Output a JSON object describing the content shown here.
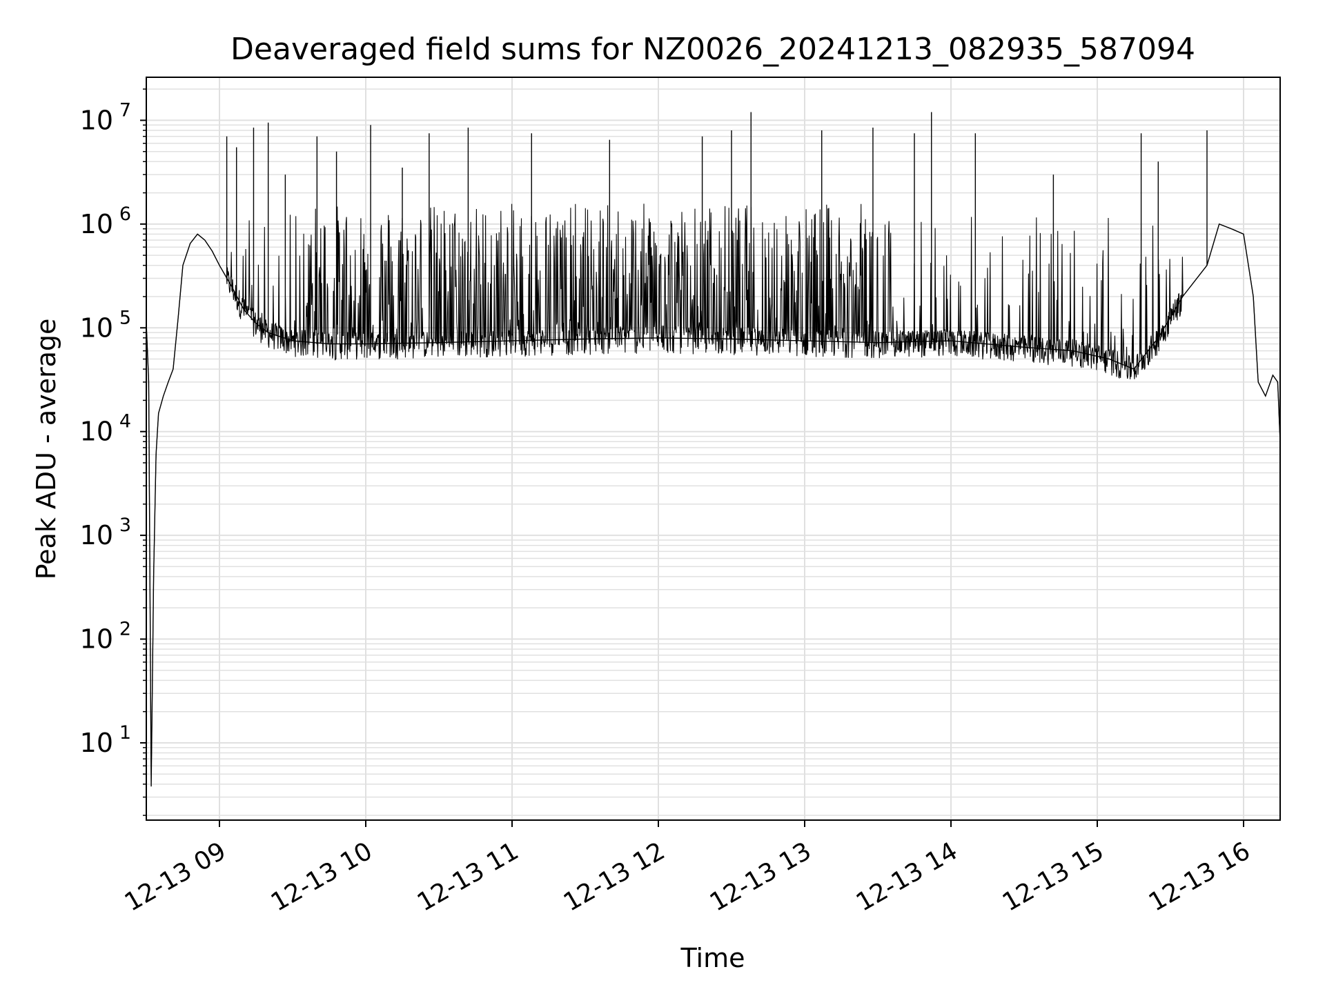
{
  "chart_data": {
    "type": "line",
    "title": "Deaveraged field sums for NZ0026_20241213_082935_587094",
    "xlabel": "Time",
    "ylabel": "Peak ADU - average",
    "y_scale": "log",
    "ylim": [
      1.8,
      26000000
    ],
    "xlim": [
      "2024-12-13 08:30",
      "2024-12-13 16:15"
    ],
    "x_tick_labels": [
      "12-13 09",
      "12-13 10",
      "12-13 11",
      "12-13 12",
      "12-13 13",
      "12-13 14",
      "12-13 15",
      "12-13 16"
    ],
    "x_tick_values": [
      "2024-12-13 09:00",
      "2024-12-13 10:00",
      "2024-12-13 11:00",
      "2024-12-13 12:00",
      "2024-12-13 13:00",
      "2024-12-13 14:00",
      "2024-12-13 15:00",
      "2024-12-13 16:00"
    ],
    "y_tick_labels": [
      {
        "base": "10",
        "exp": "1",
        "value": 10
      },
      {
        "base": "10",
        "exp": "2",
        "value": 100
      },
      {
        "base": "10",
        "exp": "3",
        "value": 1000
      },
      {
        "base": "10",
        "exp": "4",
        "value": 10000
      },
      {
        "base": "10",
        "exp": "5",
        "value": 100000
      },
      {
        "base": "10",
        "exp": "6",
        "value": 1000000
      },
      {
        "base": "10",
        "exp": "7",
        "value": 10000000
      }
    ],
    "grid": "major and minor",
    "line_color": "#000000",
    "grid_color": "#e0e0e0",
    "series": [
      {
        "x": [
          "2024-12-13 08:30",
          "2024-12-13 08:31",
          "2024-12-13 08:32",
          "2024-12-13 08:33",
          "2024-12-13 08:34",
          "2024-12-13 08:35",
          "2024-12-13 08:37",
          "2024-12-13 08:39",
          "2024-12-13 08:41",
          "2024-12-13 08:43",
          "2024-12-13 08:45",
          "2024-12-13 08:48",
          "2024-12-13 08:51",
          "2024-12-13 08:54",
          "2024-12-13 08:57",
          "2024-12-13 09:00",
          "2024-12-13 09:05",
          "2024-12-13 09:10",
          "2024-12-13 09:15",
          "2024-12-13 09:20",
          "2024-12-13 09:30",
          "2024-12-13 09:45",
          "2024-12-13 10:00",
          "2024-12-13 10:30",
          "2024-12-13 11:00",
          "2024-12-13 11:30",
          "2024-12-13 12:00",
          "2024-12-13 12:30",
          "2024-12-13 13:00",
          "2024-12-13 13:30",
          "2024-12-13 14:00",
          "2024-12-13 14:30",
          "2024-12-13 14:50",
          "2024-12-13 15:05",
          "2024-12-13 15:15",
          "2024-12-13 15:25",
          "2024-12-13 15:35",
          "2024-12-13 15:45",
          "2024-12-13 15:50",
          "2024-12-13 15:55",
          "2024-12-13 16:00",
          "2024-12-13 16:04",
          "2024-12-13 16:06",
          "2024-12-13 16:09",
          "2024-12-13 16:12",
          "2024-12-13 16:14",
          "2024-12-13 16:15"
        ],
        "y": [
          110000,
          30000,
          3.8,
          400,
          6000,
          15000,
          22000,
          30000,
          40000,
          120000,
          400000,
          650000,
          800000,
          700000,
          550000,
          400000,
          250000,
          150000,
          110000,
          90000,
          75000,
          70000,
          70000,
          72000,
          75000,
          78000,
          80000,
          78000,
          75000,
          72000,
          75000,
          65000,
          60000,
          50000,
          40000,
          80000,
          200000,
          400000,
          1000000,
          900000,
          800000,
          200000,
          30000,
          22000,
          35000,
          30000,
          8000
        ]
      }
    ],
    "spikes": {
      "x": [
        "2024-12-13 09:03",
        "2024-12-13 09:07",
        "2024-12-13 09:14",
        "2024-12-13 09:20",
        "2024-12-13 09:27",
        "2024-12-13 09:40",
        "2024-12-13 09:48",
        "2024-12-13 10:02",
        "2024-12-13 10:15",
        "2024-12-13 10:26",
        "2024-12-13 10:42",
        "2024-12-13 11:08",
        "2024-12-13 11:40",
        "2024-12-13 12:18",
        "2024-12-13 12:30",
        "2024-12-13 12:38",
        "2024-12-13 13:07",
        "2024-12-13 13:28",
        "2024-12-13 13:45",
        "2024-12-13 13:52",
        "2024-12-13 14:10",
        "2024-12-13 14:42",
        "2024-12-13 15:18",
        "2024-12-13 15:25",
        "2024-12-13 15:45"
      ],
      "y": [
        7000000,
        5500000,
        8500000,
        9500000,
        3000000,
        7000000,
        5000000,
        9000000,
        3500000,
        7500000,
        8500000,
        7500000,
        6500000,
        7000000,
        8000000,
        12000000,
        8000000,
        8500000,
        7500000,
        12000000,
        7500000,
        3000000,
        7500000,
        4000000,
        8000000
      ]
    }
  }
}
